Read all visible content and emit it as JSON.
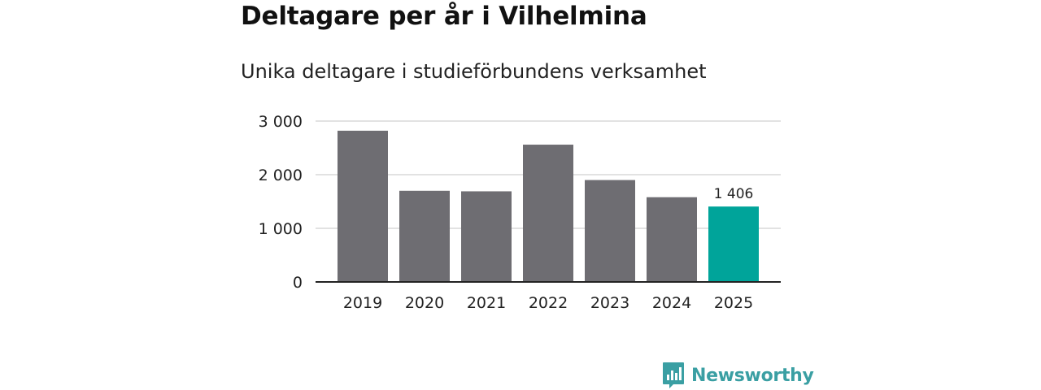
{
  "chart_data": {
    "type": "bar",
    "title": "Deltagare per år i Vilhelmina",
    "subtitle": "Unika deltagare i studieförbundens verksamhet",
    "categories": [
      "2019",
      "2020",
      "2021",
      "2022",
      "2023",
      "2024",
      "2025"
    ],
    "values": [
      2820,
      1700,
      1690,
      2560,
      1900,
      1580,
      1406
    ],
    "ylim": [
      0,
      3000
    ],
    "yticks": [
      0,
      1000,
      2000,
      3000
    ],
    "ytick_labels": [
      "0",
      "1 000",
      "2 000",
      "3 000"
    ],
    "grid": true,
    "bar_colors": {
      "default": "#6e6d72",
      "highlight": "#00a49a"
    },
    "highlight_index": 6,
    "data_labels": [
      {
        "index": 6,
        "text": "1 406"
      }
    ]
  },
  "branding": {
    "name": "Newsworthy",
    "color": "#3a9fa3",
    "icon": "bar-chart-icon"
  }
}
